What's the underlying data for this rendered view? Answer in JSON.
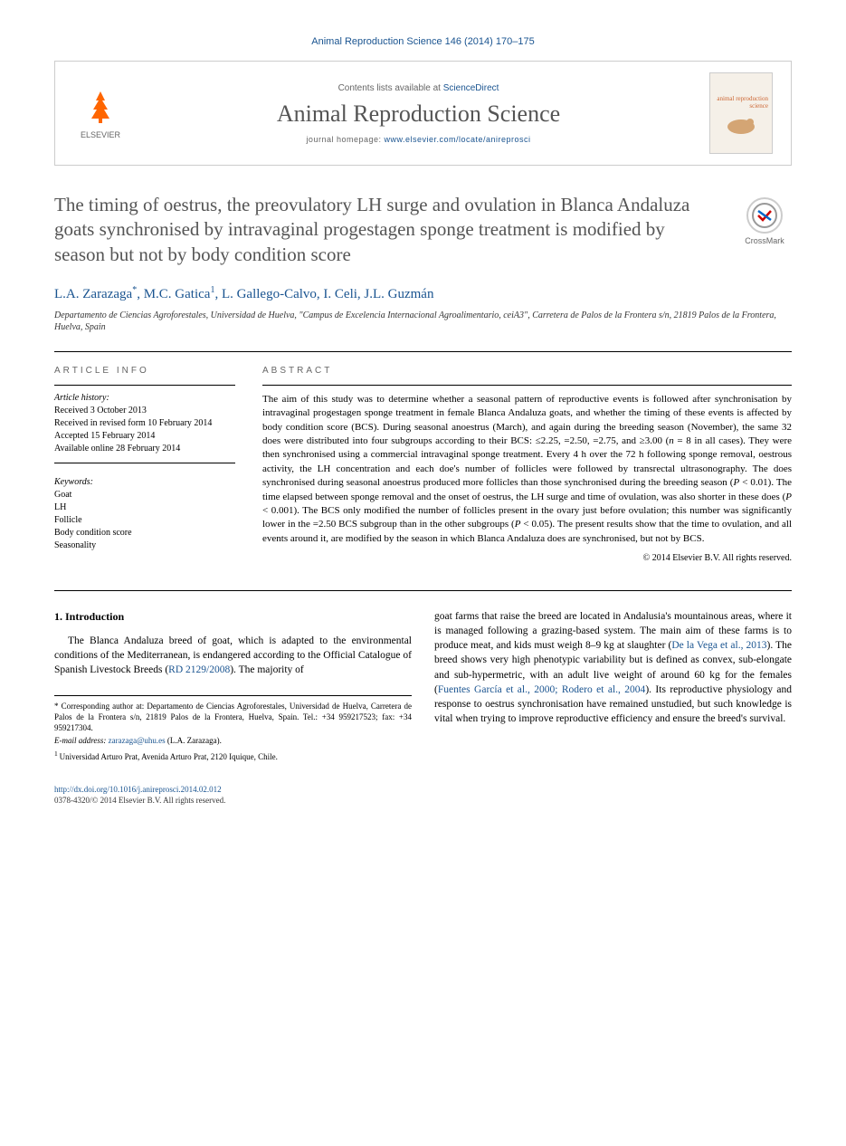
{
  "header": {
    "citation": "Animal Reproduction Science 146 (2014) 170–175",
    "contents_prefix": "Contents lists available at ",
    "contents_link": "ScienceDirect",
    "journal_name": "Animal Reproduction Science",
    "homepage_prefix": "journal homepage: ",
    "homepage_url": "www.elsevier.com/locate/anireprosci",
    "publisher": "ELSEVIER",
    "cover_label": "animal reproduction science"
  },
  "crossmark": {
    "label": "CrossMark"
  },
  "article": {
    "title": "The timing of oestrus, the preovulatory LH surge and ovulation in Blanca Andaluza goats synchronised by intravaginal progestagen sponge treatment is modified by season but not by body condition score",
    "authors_html": "L.A. Zarazaga<sup>*</sup>, M.C. Gatica<sup>1</sup>, L. Gallego-Calvo, I. Celi, J.L. Guzmán",
    "affiliation": "Departamento de Ciencias Agroforestales, Universidad de Huelva, \"Campus de Excelencia Internacional Agroalimentario, ceiA3\", Carretera de Palos de la Frontera s/n, 21819 Palos de la Frontera, Huelva, Spain"
  },
  "info": {
    "header": "ARTICLE INFO",
    "history_label": "Article history:",
    "history": [
      "Received 3 October 2013",
      "Received in revised form 10 February 2014",
      "Accepted 15 February 2014",
      "Available online 28 February 2014"
    ],
    "keywords_label": "Keywords:",
    "keywords": [
      "Goat",
      "LH",
      "Follicle",
      "Body condition score",
      "Seasonality"
    ]
  },
  "abstract": {
    "header": "ABSTRACT",
    "text": "The aim of this study was to determine whether a seasonal pattern of reproductive events is followed after synchronisation by intravaginal progestagen sponge treatment in female Blanca Andaluza goats, and whether the timing of these events is affected by body condition score (BCS). During seasonal anoestrus (March), and again during the breeding season (November), the same 32 does were distributed into four subgroups according to their BCS: ≤2.25, =2.50, =2.75, and ≥3.00 (n = 8 in all cases). They were then synchronised using a commercial intravaginal sponge treatment. Every 4 h over the 72 h following sponge removal, oestrous activity, the LH concentration and each doe's number of follicles were followed by transrectal ultrasonography. The does synchronised during seasonal anoestrus produced more follicles than those synchronised during the breeding season (P < 0.01). The time elapsed between sponge removal and the onset of oestrus, the LH surge and time of ovulation, was also shorter in these does (P < 0.001). The BCS only modified the number of follicles present in the ovary just before ovulation; this number was significantly lower in the =2.50 BCS subgroup than in the other subgroups (P < 0.05). The present results show that the time to ovulation, and all events around it, are modified by the season in which Blanca Andaluza does are synchronised, but not by BCS.",
    "copyright": "© 2014 Elsevier B.V. All rights reserved."
  },
  "body": {
    "section_number": "1.",
    "section_title": "Introduction",
    "para1_part1": "The Blanca Andaluza breed of goat, which is adapted to the environmental conditions of the Mediterranean, is endangered according to the Official Catalogue of Spanish Livestock Breeds (",
    "para1_ref1": "RD 2129/2008",
    "para1_part2": "). The majority of",
    "col2_part1": "goat farms that raise the breed are located in Andalusia's mountainous areas, where it is managed following a grazing-based system. The main aim of these farms is to produce meat, and kids must weigh 8–9 kg at slaughter (",
    "col2_ref1": "De la Vega et al., 2013",
    "col2_part2": "). The breed shows very high phenotypic variability but is defined as convex, sub-elongate and sub-hypermetric, with an adult live weight of around 60 kg for the females (",
    "col2_ref2": "Fuentes García et al., 2000; Rodero et al., 2004",
    "col2_part3": "). Its reproductive physiology and response to oestrus synchronisation have remained unstudied, but such knowledge is vital when trying to improve reproductive efficiency and ensure the breed's survival."
  },
  "footnotes": {
    "corr_label": "* Corresponding author at: ",
    "corr_text": "Departamento de Ciencias Agroforestales, Universidad de Huelva, Carretera de Palos de la Frontera s/n, 21819 Palos de la Frontera, Huelva, Spain. Tel.: +34 959217523; fax: +34 959217304.",
    "email_label": "E-mail address: ",
    "email": "zarazaga@uhu.es",
    "email_suffix": " (L.A. Zarazaga).",
    "note1_label": "1 ",
    "note1_text": "Universidad Arturo Prat, Avenida Arturo Prat, 2120 Iquique, Chile."
  },
  "bottom": {
    "doi": "http://dx.doi.org/10.1016/j.anireprosci.2014.02.012",
    "issn_line": "0378-4320/© 2014 Elsevier B.V. All rights reserved."
  },
  "colors": {
    "link": "#1a5490",
    "text": "#000000",
    "muted": "#666666",
    "title_gray": "#555555",
    "elsevier_orange": "#ff6600"
  }
}
